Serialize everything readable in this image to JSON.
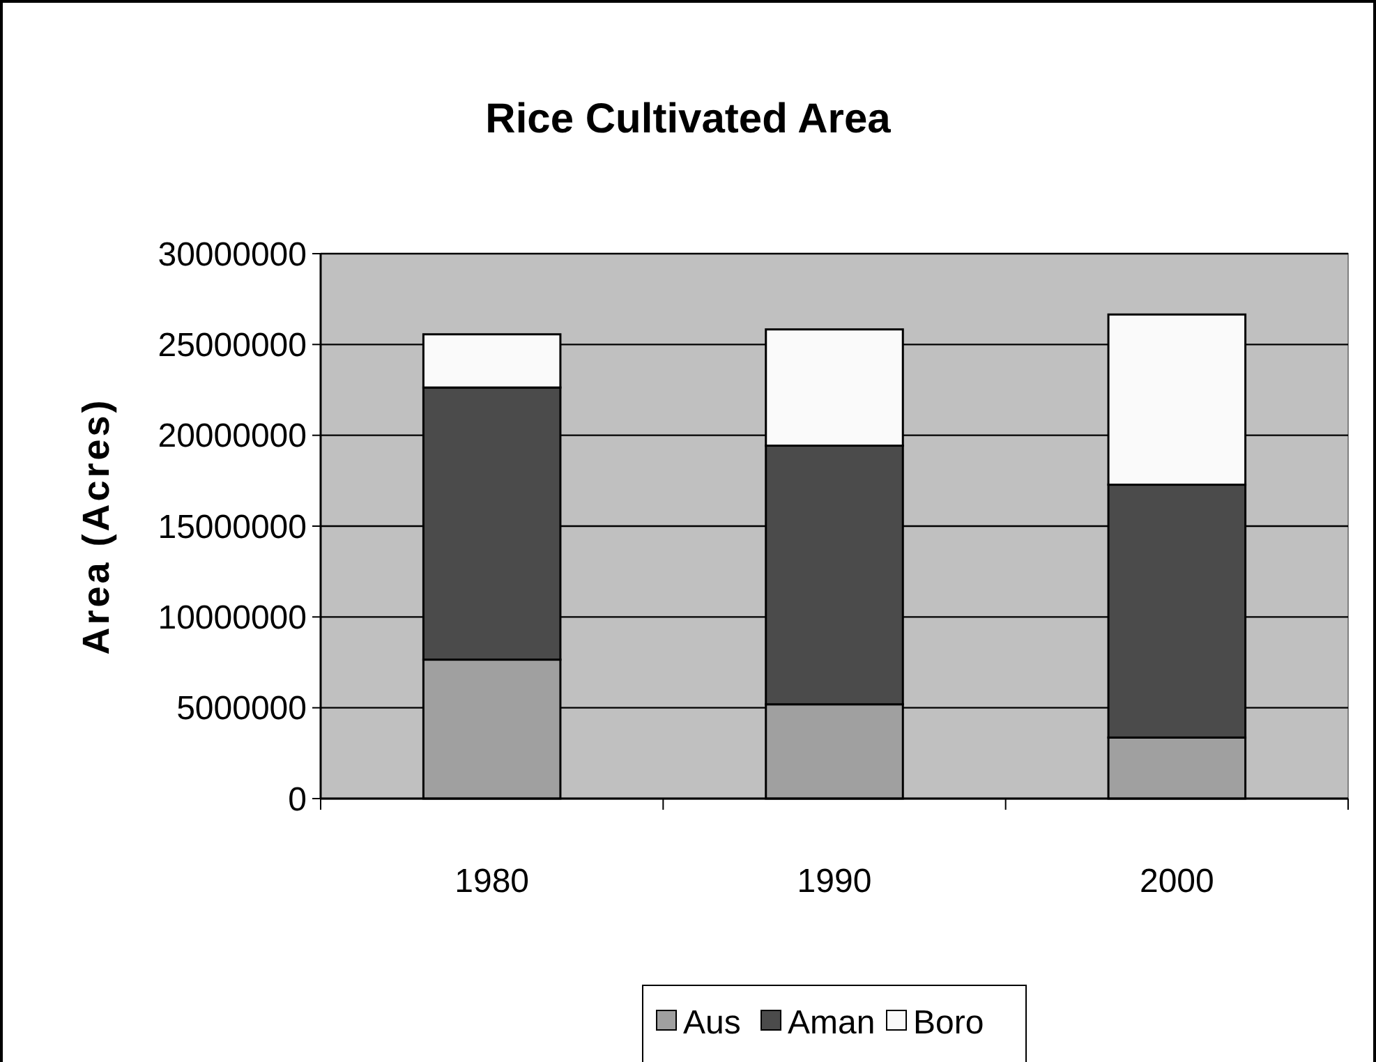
{
  "chart_data": {
    "type": "bar",
    "title": "Rice Cultivated Area",
    "ylabel": "Area (Acres)",
    "categories": [
      "1980",
      "1990",
      "2000"
    ],
    "stacked": true,
    "series": [
      {
        "name": "Aus",
        "color": "#a0a0a0",
        "values": [
          7650000,
          5190000,
          3360000
        ]
      },
      {
        "name": "Aman",
        "color": "#4b4b4b",
        "values": [
          14980000,
          14240000,
          13920000
        ]
      },
      {
        "name": "Boro",
        "color": "#fafafa",
        "values": [
          2930000,
          6400000,
          9370000
        ]
      }
    ],
    "ylim": [
      0,
      30000000
    ],
    "yticks": [
      0,
      5000000,
      10000000,
      15000000,
      20000000,
      25000000,
      30000000
    ],
    "grid": "y",
    "legend": "bottom"
  }
}
